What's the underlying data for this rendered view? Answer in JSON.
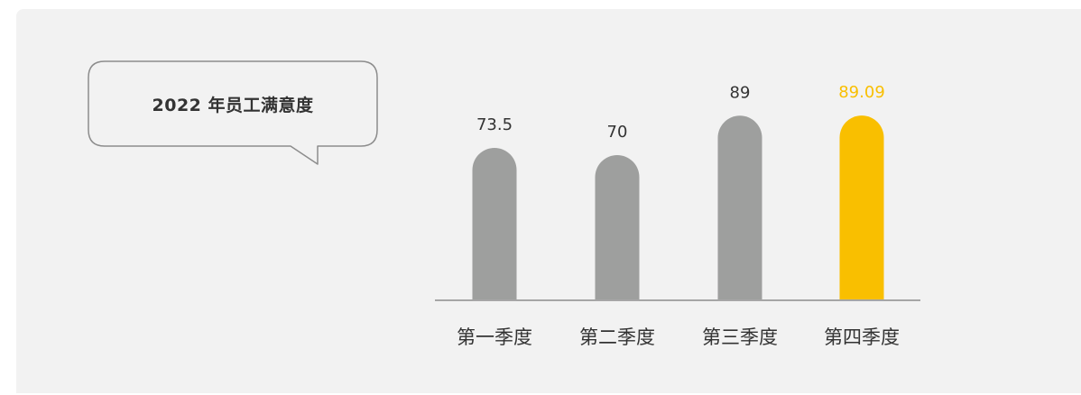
{
  "chart_data": {
    "type": "bar",
    "title": "2022 年员工满意度",
    "categories": [
      "第一季度",
      "第二季度",
      "第三季度",
      "第四季度"
    ],
    "values": [
      73.5,
      70,
      89,
      89.09
    ],
    "value_labels": [
      "73.5",
      "70",
      "89",
      "89.09"
    ],
    "highlight_index": 3,
    "ylim": [
      0,
      100
    ],
    "grid": false,
    "legend": "none",
    "colors": {
      "bar": "#9e9f9e",
      "highlight": "#f9bf00",
      "label": "#333333",
      "axis": "#a6a6a6",
      "background": "#f2f2f2"
    }
  }
}
